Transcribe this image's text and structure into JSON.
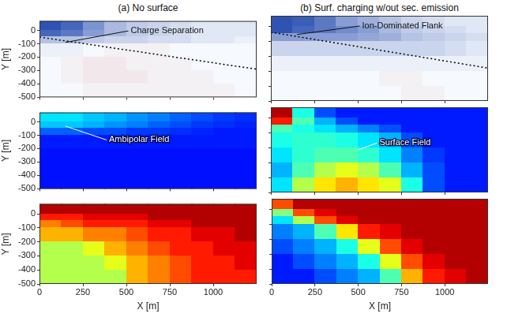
{
  "chart_data": [
    {
      "type": "heatmap",
      "title": "(a) No surface",
      "ylabel": "Y [m]",
      "tick_labels": "y",
      "xlim": [
        0,
        1250
      ],
      "ylim": [
        -500,
        70
      ],
      "xticks": [
        0,
        250,
        500,
        750,
        1000
      ],
      "yticks": [
        -500,
        -400,
        -300,
        -200,
        -100,
        0
      ],
      "x_edges": [
        0,
        125,
        250,
        375,
        500,
        625,
        750,
        875,
        1000,
        1125,
        1250
      ],
      "y_edges": [
        70,
        0,
        -50,
        -100,
        -200,
        -300,
        -400,
        -500
      ],
      "zlim": [
        -1,
        1
      ],
      "cells": [
        [
          0.9,
          0.8,
          0.55,
          0.35,
          0.25,
          0.2,
          0.15,
          0.1,
          0.1,
          0.1
        ],
        [
          0.8,
          0.7,
          0.5,
          0.35,
          0.25,
          0.2,
          0.15,
          0.1,
          0.1,
          0.1
        ],
        [
          0.3,
          0.3,
          0.25,
          0.2,
          0.2,
          0.15,
          0.15,
          0.1,
          0.1,
          0.05
        ],
        [
          0.05,
          0.05,
          0,
          -0.05,
          -0.05,
          -0.05,
          0,
          0,
          0,
          0
        ],
        [
          0,
          -0.05,
          -0.1,
          -0.1,
          -0.05,
          -0.05,
          -0.05,
          0,
          0,
          0
        ],
        [
          0,
          -0.05,
          -0.1,
          -0.1,
          -0.1,
          -0.05,
          -0.05,
          -0.05,
          0,
          0
        ],
        [
          0,
          0,
          -0.05,
          -0.05,
          -0.05,
          -0.05,
          -0.05,
          -0.05,
          -0.05,
          0
        ]
      ],
      "series": [
        {
          "type": "line",
          "x": [
            0,
            1250
          ],
          "values": [
            -50,
            -290
          ],
          "color": "#000000",
          "line_style": "dotted"
        }
      ],
      "annotations": [
        {
          "text": "Charge Separation"
        }
      ]
    },
    {
      "type": "heatmap",
      "title": "(b) Surf. charging w/out sec. emission",
      "tick_labels": false,
      "xlim": [
        0,
        1250
      ],
      "ylim": [
        -500,
        70
      ],
      "xticks": [
        0,
        250,
        500,
        750,
        1000
      ],
      "yticks": [
        -500,
        -400,
        -300,
        -200,
        -100,
        0
      ],
      "x_edges": [
        0,
        125,
        250,
        375,
        500,
        625,
        750,
        875,
        1000,
        1125,
        1250
      ],
      "y_edges": [
        70,
        0,
        -50,
        -100,
        -200,
        -300,
        -400,
        -500
      ],
      "zlim": [
        -1,
        1
      ],
      "cells": [
        [
          0.9,
          0.85,
          0.7,
          0.5,
          0.4,
          0.3,
          0.2,
          0.15,
          0.1,
          0.1
        ],
        [
          0.9,
          0.8,
          0.7,
          0.6,
          0.5,
          0.35,
          0.25,
          0.2,
          0.15,
          0.1
        ],
        [
          0.5,
          0.5,
          0.5,
          0.5,
          0.45,
          0.4,
          0.3,
          0.25,
          0.2,
          0.15
        ],
        [
          0.2,
          0.2,
          0.2,
          0.2,
          0.2,
          0.2,
          0.2,
          0.2,
          0.15,
          0.1
        ],
        [
          0.05,
          0.05,
          0.05,
          0.05,
          0.05,
          0.05,
          0.05,
          0.05,
          0.05,
          0.05
        ],
        [
          0,
          0,
          0,
          0,
          0,
          -0.05,
          -0.05,
          0,
          0,
          0
        ],
        [
          0,
          0,
          0,
          0,
          0,
          0,
          -0.05,
          -0.05,
          0,
          0
        ]
      ],
      "series": [
        {
          "type": "line",
          "x": [
            0,
            1250
          ],
          "values": [
            -40,
            -280
          ],
          "color": "#000000",
          "line_style": "dotted"
        }
      ],
      "annotations": [
        {
          "text": "Ion-Dominated Flank"
        }
      ]
    },
    {
      "type": "heatmap",
      "ylabel": "Y [m]",
      "tick_labels": "y",
      "xlim": [
        0,
        1250
      ],
      "ylim": [
        -500,
        70
      ],
      "xticks": [
        0,
        250,
        500,
        750,
        1000
      ],
      "yticks": [
        -500,
        -400,
        -300,
        -200,
        -100,
        0
      ],
      "x_edges": [
        0,
        125,
        250,
        375,
        500,
        625,
        750,
        875,
        1000,
        1125,
        1250
      ],
      "y_edges": [
        70,
        0,
        -50,
        -100,
        -200,
        -300,
        -400,
        -500
      ],
      "zlim": [
        0,
        1
      ],
      "cells": [
        [
          0.35,
          0.35,
          0.32,
          0.3,
          0.27,
          0.25,
          0.22,
          0.2,
          0.18,
          0.17
        ],
        [
          0.32,
          0.32,
          0.3,
          0.27,
          0.25,
          0.22,
          0.2,
          0.18,
          0.17,
          0.16
        ],
        [
          0.22,
          0.22,
          0.2,
          0.2,
          0.18,
          0.18,
          0.17,
          0.16,
          0.15,
          0.15
        ],
        [
          0.15,
          0.15,
          0.15,
          0.15,
          0.15,
          0.15,
          0.15,
          0.15,
          0.15,
          0.15
        ],
        [
          0.14,
          0.14,
          0.14,
          0.14,
          0.14,
          0.14,
          0.14,
          0.14,
          0.14,
          0.14
        ],
        [
          0.14,
          0.14,
          0.14,
          0.14,
          0.14,
          0.14,
          0.14,
          0.14,
          0.14,
          0.14
        ],
        [
          0.14,
          0.14,
          0.14,
          0.14,
          0.14,
          0.14,
          0.14,
          0.14,
          0.14,
          0.14
        ]
      ],
      "annotations": [
        {
          "text": "Ambipolar Field"
        }
      ]
    },
    {
      "type": "heatmap",
      "tick_labels": false,
      "xlim": [
        0,
        1250
      ],
      "ylim": [
        -500,
        70
      ],
      "xticks": [
        0,
        250,
        500,
        750,
        1000
      ],
      "yticks": [
        -500,
        -400,
        -300,
        -200,
        -100,
        0
      ],
      "x_edges": [
        0,
        125,
        250,
        375,
        500,
        625,
        750,
        875,
        1000,
        1125,
        1250
      ],
      "y_edges": [
        70,
        0,
        -50,
        -100,
        -200,
        -300,
        -400,
        -500
      ],
      "zlim": [
        0,
        1
      ],
      "cells": [
        [
          0.95,
          0.4,
          0.2,
          0.15,
          0.15,
          0.15,
          0.15,
          0.15,
          0.15,
          0.15
        ],
        [
          0.85,
          0.45,
          0.3,
          0.2,
          0.15,
          0.15,
          0.15,
          0.15,
          0.15,
          0.15
        ],
        [
          0.45,
          0.4,
          0.35,
          0.3,
          0.25,
          0.2,
          0.15,
          0.15,
          0.15,
          0.15
        ],
        [
          0.4,
          0.42,
          0.42,
          0.4,
          0.35,
          0.3,
          0.2,
          0.15,
          0.15,
          0.15
        ],
        [
          0.35,
          0.42,
          0.45,
          0.45,
          0.42,
          0.35,
          0.25,
          0.18,
          0.15,
          0.15
        ],
        [
          0.3,
          0.45,
          0.55,
          0.6,
          0.55,
          0.45,
          0.3,
          0.2,
          0.15,
          0.15
        ],
        [
          0.35,
          0.55,
          0.65,
          0.7,
          0.65,
          0.6,
          0.4,
          0.2,
          0.15,
          0.15
        ]
      ],
      "annotations": [
        {
          "text": "Surface Field"
        }
      ]
    },
    {
      "type": "heatmap",
      "xlabel": "X [m]",
      "ylabel": "Y [m]",
      "xlim": [
        0,
        1250
      ],
      "ylim": [
        -500,
        70
      ],
      "xticks": [
        0,
        250,
        500,
        750,
        1000
      ],
      "yticks": [
        -500,
        -400,
        -300,
        -200,
        -100,
        0
      ],
      "x_edges": [
        0,
        125,
        250,
        375,
        500,
        625,
        750,
        875,
        1000,
        1125,
        1250
      ],
      "y_edges": [
        70,
        0,
        -50,
        -100,
        -200,
        -300,
        -400,
        -500
      ],
      "zlim": [
        0,
        1
      ],
      "cells": [
        [
          0.95,
          0.95,
          0.95,
          0.95,
          0.95,
          0.95,
          0.95,
          0.95,
          0.95,
          0.95
        ],
        [
          0.85,
          0.85,
          0.9,
          0.9,
          0.9,
          0.95,
          0.95,
          0.95,
          0.95,
          0.95
        ],
        [
          0.75,
          0.8,
          0.85,
          0.85,
          0.85,
          0.9,
          0.9,
          0.95,
          0.95,
          0.95
        ],
        [
          0.7,
          0.7,
          0.75,
          0.75,
          0.8,
          0.85,
          0.85,
          0.9,
          0.9,
          0.95
        ],
        [
          0.55,
          0.55,
          0.6,
          0.7,
          0.75,
          0.8,
          0.85,
          0.85,
          0.9,
          0.9
        ],
        [
          0.55,
          0.55,
          0.55,
          0.6,
          0.7,
          0.75,
          0.8,
          0.85,
          0.85,
          0.9
        ],
        [
          0.55,
          0.55,
          0.55,
          0.55,
          0.7,
          0.75,
          0.8,
          0.85,
          0.85,
          0.85
        ]
      ]
    },
    {
      "type": "heatmap",
      "xlabel": "X [m]",
      "tick_labels": "x",
      "xlim": [
        0,
        1250
      ],
      "ylim": [
        -500,
        70
      ],
      "xticks": [
        0,
        250,
        500,
        750,
        1000
      ],
      "yticks": [
        -500,
        -400,
        -300,
        -200,
        -100,
        0
      ],
      "x_edges": [
        0,
        125,
        250,
        375,
        500,
        625,
        750,
        875,
        1000,
        1125,
        1250
      ],
      "y_edges": [
        70,
        0,
        -50,
        -100,
        -200,
        -300,
        -400,
        -500
      ],
      "zlim": [
        0,
        1
      ],
      "cells": [
        [
          0.8,
          0.95,
          0.95,
          0.95,
          0.95,
          0.95,
          0.95,
          0.95,
          0.95,
          0.95
        ],
        [
          0.5,
          0.8,
          0.9,
          0.95,
          0.95,
          0.95,
          0.95,
          0.95,
          0.95,
          0.95
        ],
        [
          0.35,
          0.55,
          0.8,
          0.9,
          0.95,
          0.95,
          0.95,
          0.95,
          0.95,
          0.95
        ],
        [
          0.25,
          0.3,
          0.45,
          0.65,
          0.85,
          0.9,
          0.95,
          0.95,
          0.95,
          0.95
        ],
        [
          0.2,
          0.25,
          0.3,
          0.4,
          0.6,
          0.8,
          0.9,
          0.95,
          0.95,
          0.95
        ],
        [
          0.15,
          0.2,
          0.25,
          0.3,
          0.4,
          0.6,
          0.8,
          0.9,
          0.95,
          0.95
        ],
        [
          0.15,
          0.15,
          0.2,
          0.25,
          0.3,
          0.45,
          0.7,
          0.85,
          0.9,
          0.95
        ]
      ]
    }
  ]
}
